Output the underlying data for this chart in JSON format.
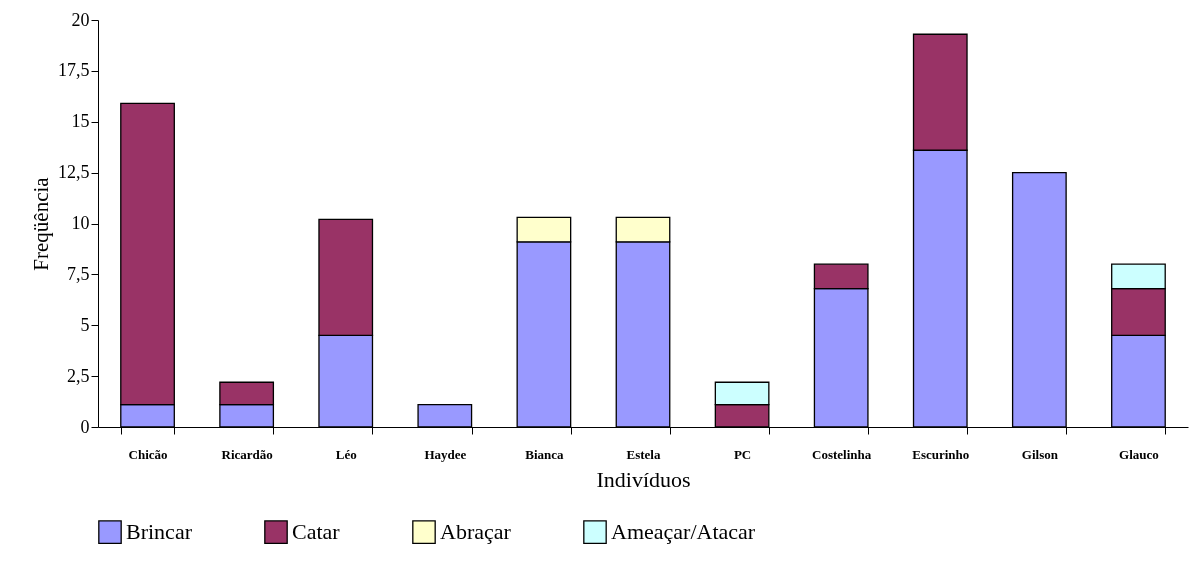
{
  "chart_data": {
    "type": "bar",
    "stacked": true,
    "xlabel": "Indivíduos",
    "ylabel": "Freqüência",
    "categories": [
      "Chicão",
      "Ricardão",
      "Léo",
      "Haydee",
      "Bianca",
      "Estela",
      "PC",
      "Costelinha",
      "Escurinho",
      "Gilson",
      "Glauco"
    ],
    "series": [
      {
        "name": "Brincar",
        "color": "#9999ff",
        "values": [
          1.1,
          1.1,
          4.5,
          1.1,
          9.1,
          9.1,
          null,
          6.8,
          13.6,
          12.5,
          4.5
        ]
      },
      {
        "name": "Catar",
        "color": "#993366",
        "values": [
          14.8,
          1.1,
          5.7,
          null,
          null,
          null,
          1.1,
          1.2,
          5.7,
          null,
          2.3
        ]
      },
      {
        "name": "Abraçar",
        "color": "#ffffcc",
        "values": [
          null,
          null,
          null,
          null,
          1.2,
          1.2,
          null,
          null,
          null,
          null,
          null
        ]
      },
      {
        "name": "Ameaçar/Atacar",
        "color": "#ccffff",
        "values": [
          null,
          null,
          null,
          null,
          null,
          null,
          1.1,
          null,
          null,
          null,
          1.2
        ]
      }
    ],
    "ylim": [
      0,
      20
    ],
    "yticks": [
      0,
      {
        "value": 2.5,
        "label": "2,5"
      },
      5,
      {
        "value": 7.5,
        "label": "7,5"
      },
      10,
      {
        "value": 12.5,
        "label": "12,5"
      },
      15,
      {
        "value": 17.5,
        "label": "17,5"
      },
      20
    ],
    "grid": false,
    "legend": "bottom"
  }
}
